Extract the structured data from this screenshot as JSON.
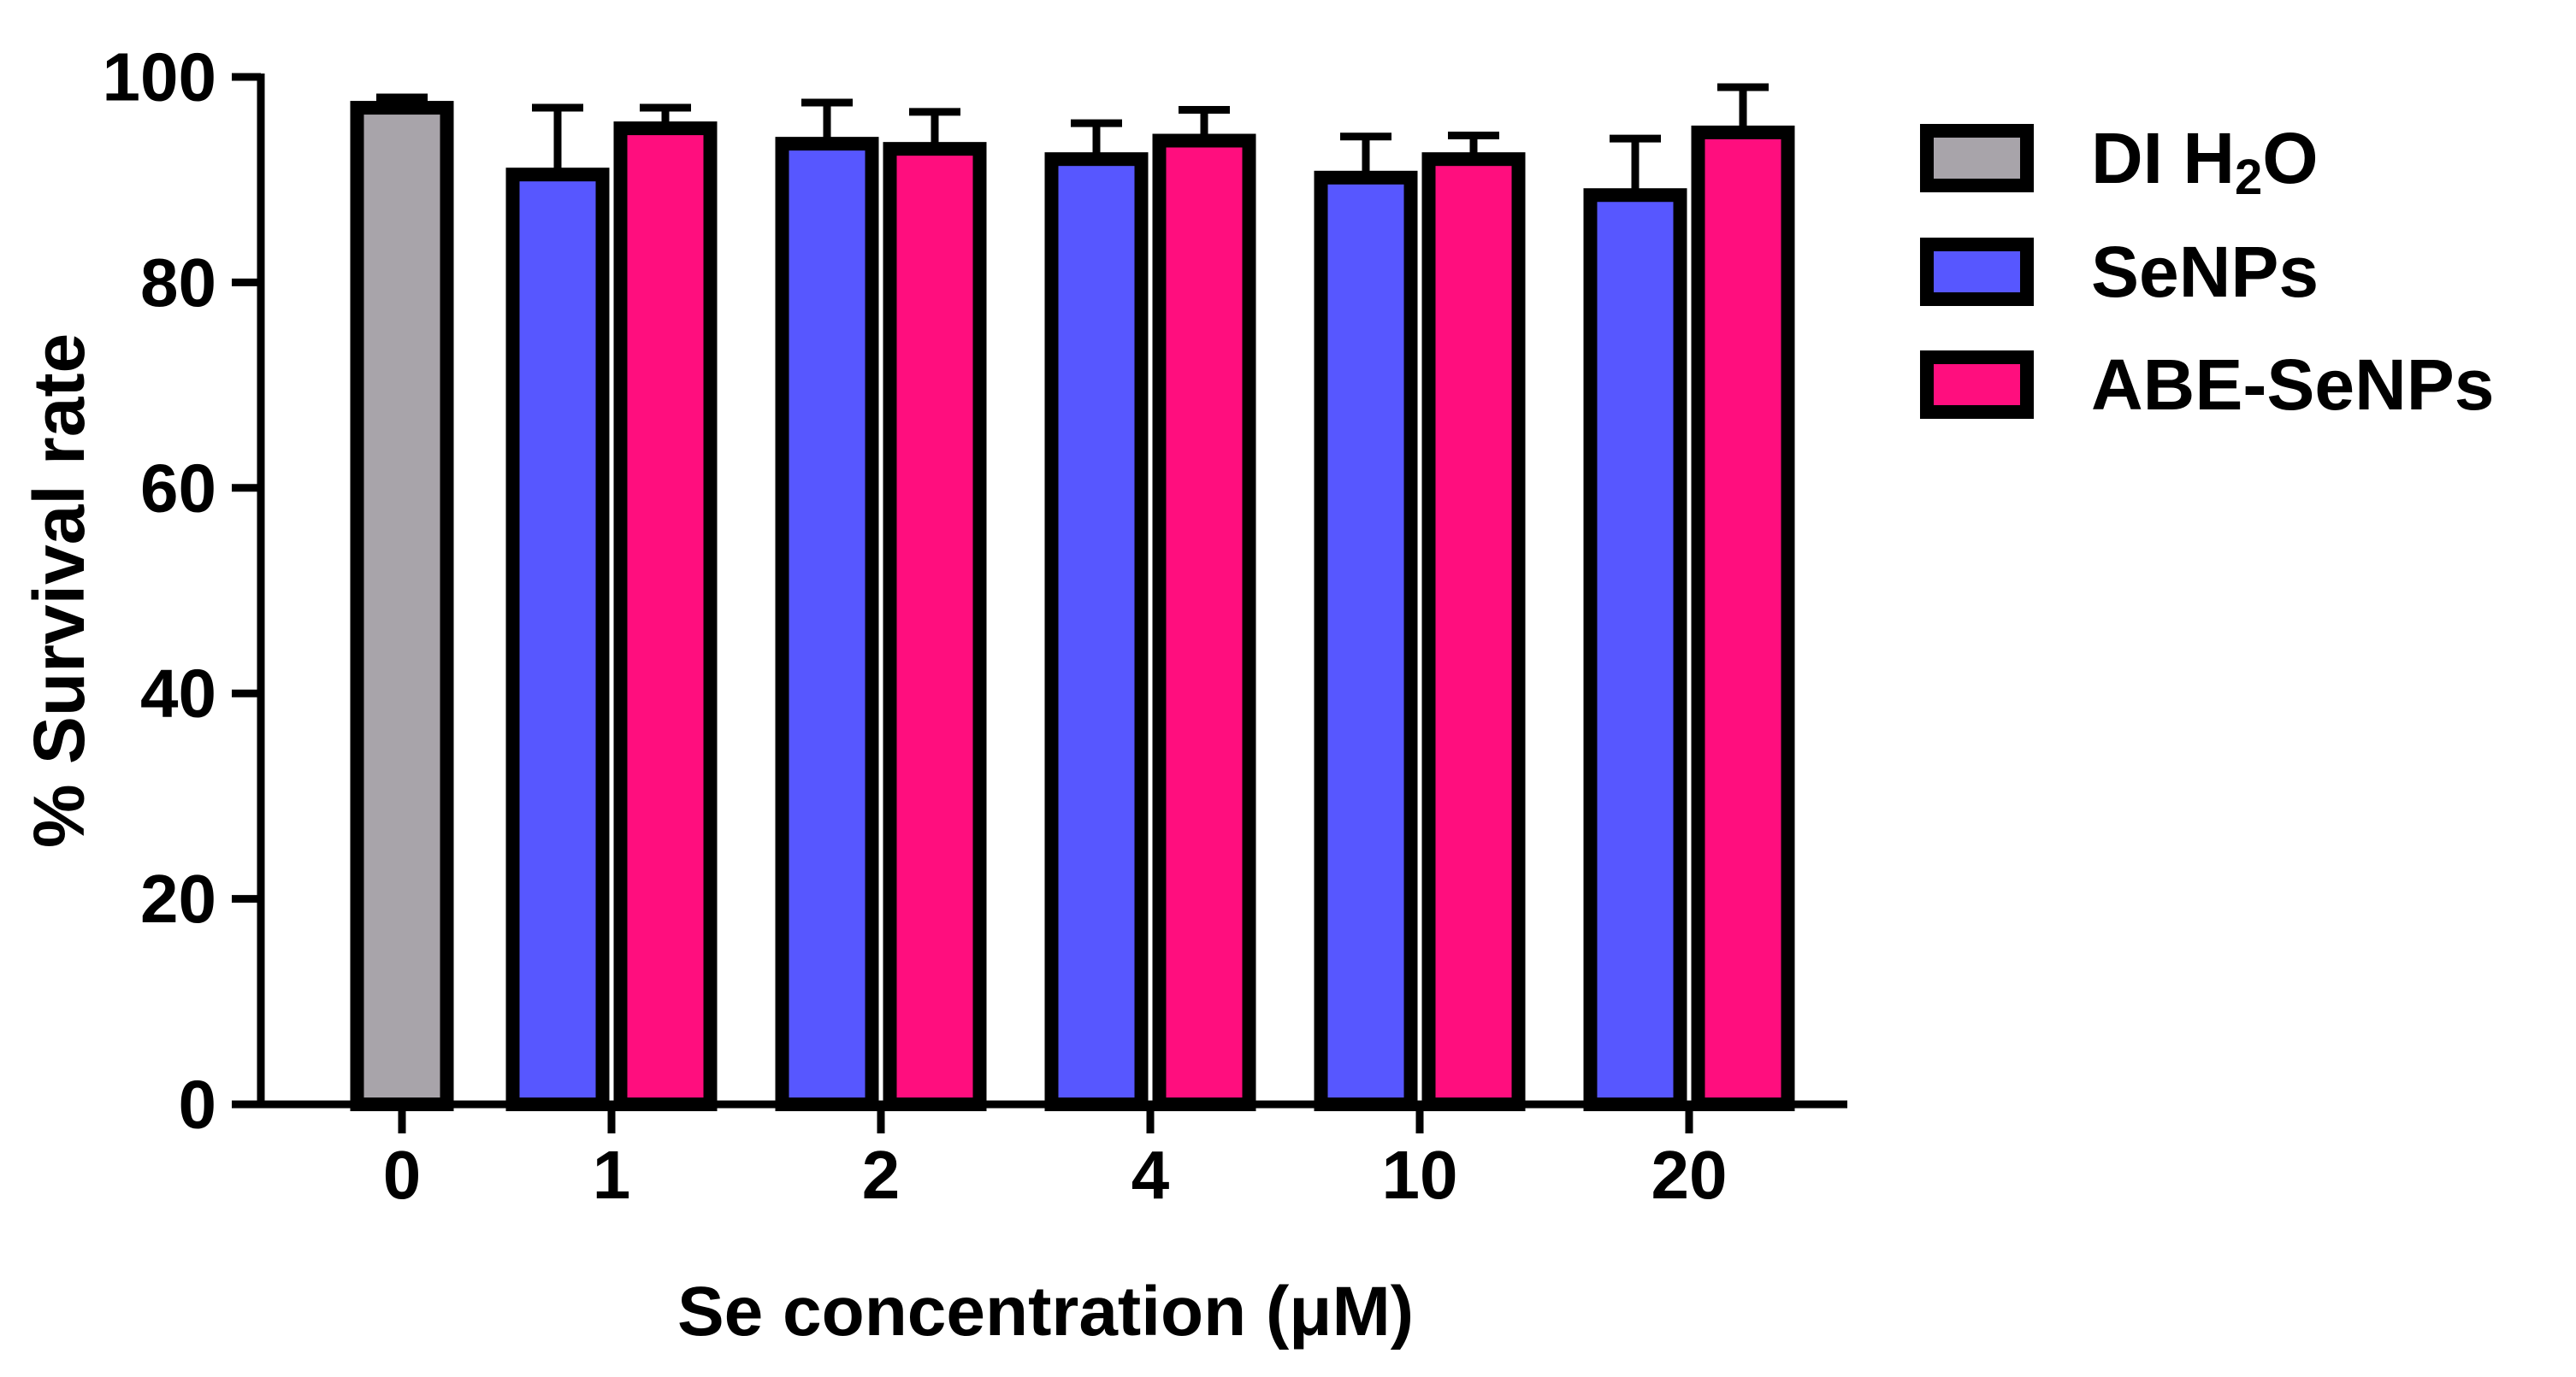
{
  "colors": {
    "DI H2O": "#A8A4AA",
    "SeNPs": "#5757FF",
    "ABE-SeNPs": "#FF0E7E",
    "stroke": "#000000",
    "background": "#FFFFFF"
  },
  "chart_data": {
    "type": "bar",
    "title": "",
    "xlabel": "Se concentration (μM)",
    "ylabel": "% Survival rate",
    "ylim": [
      0,
      100
    ],
    "yticks": [
      "0",
      "20",
      "40",
      "60",
      "80",
      "100"
    ],
    "categories": [
      "0",
      "1",
      "2",
      "4",
      "10",
      "20"
    ],
    "series": [
      {
        "name": "DI H2O",
        "legend_main": "DI H",
        "legend_sub": "2",
        "legend_tail": "O",
        "values": [
          97,
          null,
          null,
          null,
          null,
          null
        ],
        "errors": [
          1,
          null,
          null,
          null,
          null,
          null
        ]
      },
      {
        "name": "SeNPs",
        "values": [
          null,
          90.5,
          93.5,
          92,
          90.2,
          88.5
        ],
        "errors": [
          null,
          6.5,
          4,
          3.5,
          4,
          5.5
        ]
      },
      {
        "name": "ABE-SeNPs",
        "values": [
          null,
          95,
          93,
          93.8,
          92,
          94.6
        ],
        "errors": [
          null,
          2,
          3.6,
          3,
          2.3,
          4.4
        ]
      }
    ],
    "legend_position": "right",
    "grid": false
  }
}
